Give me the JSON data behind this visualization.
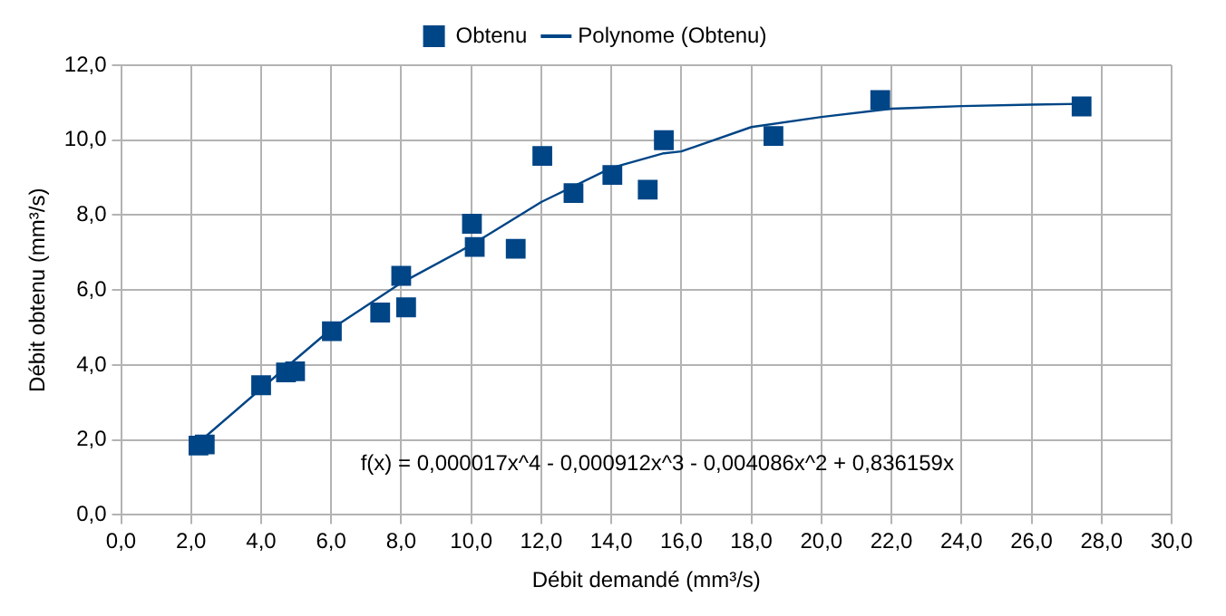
{
  "chart_data": {
    "type": "scatter",
    "xlabel": "Débit demandé (mm³/s)",
    "ylabel": "Débit obtenu (mm³/s)",
    "series": [
      {
        "name": "Obtenu",
        "type": "scatter",
        "marker": "square",
        "color": "#004586",
        "x": [
          2.21,
          2.39,
          4.0,
          4.71,
          4.97,
          6.02,
          7.4,
          8.14,
          8.0,
          10.02,
          10.1,
          11.27,
          12.03,
          12.92,
          14.03,
          15.04,
          15.5,
          18.63,
          21.68,
          27.43
        ],
        "values": [
          1.85,
          1.88,
          3.46,
          3.8,
          3.83,
          4.9,
          5.4,
          5.54,
          6.38,
          7.77,
          7.15,
          7.1,
          9.58,
          8.59,
          9.07,
          8.68,
          10.0,
          10.11,
          11.07,
          10.9
        ]
      },
      {
        "name": "Polynome (Obtenu)",
        "type": "line",
        "marker": "none",
        "line_style": "solid",
        "color": "#004586",
        "x": [
          2.2,
          4,
          6,
          8,
          10,
          12,
          14,
          15.5,
          16,
          18,
          20,
          22,
          24,
          26,
          27.4
        ],
        "values": [
          1.92,
          3.37,
          4.96,
          6.19,
          7.2,
          8.35,
          9.26,
          9.65,
          9.7,
          10.35,
          10.62,
          10.84,
          10.91,
          10.95,
          10.97
        ]
      }
    ],
    "xlim": [
      0,
      30
    ],
    "xticks": [
      {
        "value": 0,
        "label": "0,0"
      },
      {
        "value": 2,
        "label": "2,0"
      },
      {
        "value": 4,
        "label": "4,0"
      },
      {
        "value": 6,
        "label": "6,0"
      },
      {
        "value": 8,
        "label": "8,0"
      },
      {
        "value": 10,
        "label": "10,0"
      },
      {
        "value": 12,
        "label": "12,0"
      },
      {
        "value": 14,
        "label": "14,0"
      },
      {
        "value": 16,
        "label": "16,0"
      },
      {
        "value": 18,
        "label": "18,0"
      },
      {
        "value": 20,
        "label": "20,0"
      },
      {
        "value": 22,
        "label": "22,0"
      },
      {
        "value": 24,
        "label": "24,0"
      },
      {
        "value": 26,
        "label": "26,0"
      },
      {
        "value": 28,
        "label": "28,0"
      },
      {
        "value": 30,
        "label": "30,0"
      }
    ],
    "ylim": [
      0,
      12
    ],
    "yticks": [
      {
        "value": 0,
        "label": "0,0"
      },
      {
        "value": 2,
        "label": "2,0"
      },
      {
        "value": 4,
        "label": "4,0"
      },
      {
        "value": 6,
        "label": "6,0"
      },
      {
        "value": 8,
        "label": "8,0"
      },
      {
        "value": 10,
        "label": "10,0"
      },
      {
        "value": 12,
        "label": "12,0"
      }
    ],
    "grid": true,
    "legend": "top",
    "annotations": [
      "f(x) = 0,000017x^4 - 0,000912x^3 - 0,004086x^2 + 0,836159x"
    ]
  }
}
